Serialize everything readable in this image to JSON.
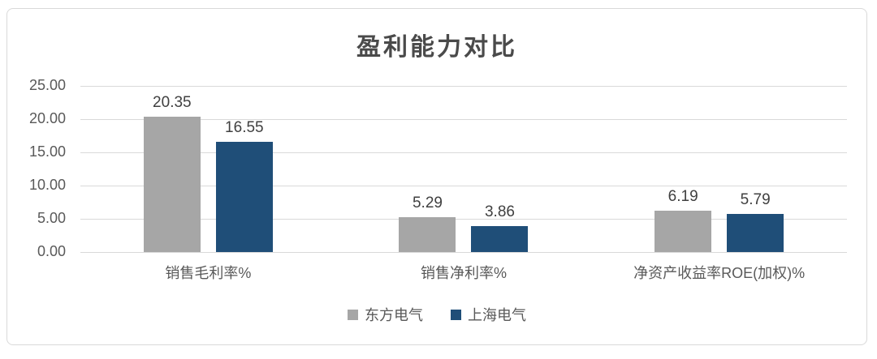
{
  "chart_data": {
    "type": "bar",
    "title": "盈利能力对比",
    "categories": [
      "销售毛利率%",
      "销售净利率%",
      "净资产收益率ROE(加权)%"
    ],
    "series": [
      {
        "name": "东方电气",
        "color": "#A6A6A6",
        "values": [
          20.35,
          5.29,
          6.19
        ],
        "data_labels": [
          "20.35",
          "5.29",
          "6.19"
        ]
      },
      {
        "name": "上海电气",
        "color": "#1F4E78",
        "values": [
          16.55,
          3.86,
          5.79
        ],
        "data_labels": [
          "16.55",
          "3.86",
          "5.79"
        ]
      }
    ],
    "y_ticks": [
      "25.00",
      "20.00",
      "15.00",
      "10.00",
      "5.00",
      "0.00"
    ],
    "ylim": [
      0,
      25
    ],
    "xlabel": "",
    "ylabel": "",
    "grid": true,
    "legend_position": "bottom"
  },
  "colors": {
    "bar_gray": "#A6A6A6",
    "bar_blue": "#1F4E78",
    "gridline": "#D9D9D9",
    "card_border": "#D9D9D9",
    "axis_text": "#595959",
    "value_text": "#404040",
    "title_text": "#4A4A4A"
  }
}
